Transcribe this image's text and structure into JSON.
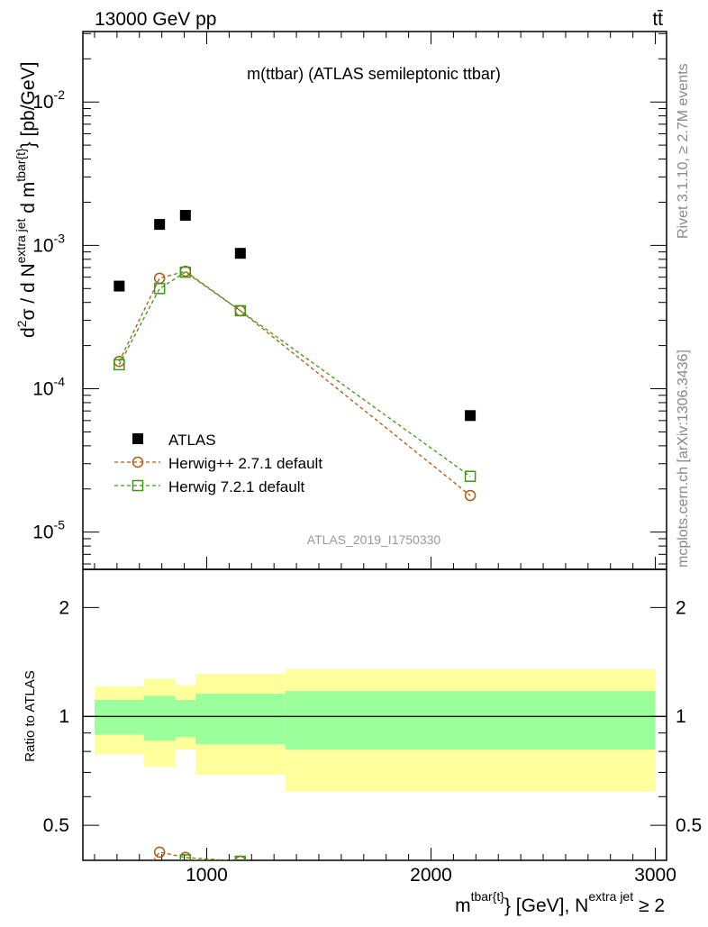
{
  "chart_data": {
    "type": "scatter",
    "header_left": "13000 GeV pp",
    "header_right": "tt̄",
    "title": "m(ttbar) (ATLAS semileptonic ttbar)",
    "analysis_id": "ATLAS_2019_I1750330",
    "side_label_top": "Rivet 3.1.10, ≥ 2.7M events",
    "side_label_bottom": "mcplots.cern.ch [arXiv:1306.3436]",
    "ylabel": "d²σ / d N^extra jet d m^tbar{t} [pb/GeV]",
    "ylabel_parts": {
      "a": "d",
      "b": "2",
      "c": "σ / d N",
      "d": "extra jet",
      "e": " d m",
      "f": "tbar{t}",
      "g": "} [pb/GeV]"
    },
    "xlabel_parts": {
      "a": "m",
      "b": "tbar{t}",
      "c": "} [GeV], N",
      "d": "extra jet",
      "e": " ≥ 2"
    },
    "ratio_ylabel": "Ratio to ATLAS",
    "yscale": "log",
    "ylim": [
      5.5e-06,
      0.031
    ],
    "xlim": [
      448,
      3050
    ],
    "ratio_ylim": [
      0.4,
      2.55
    ],
    "y_ticks": [
      {
        "v": 0.01,
        "m": "10",
        "e": "-2"
      },
      {
        "v": 0.001,
        "m": "10",
        "e": "-3"
      },
      {
        "v": 0.0001,
        "m": "10",
        "e": "-4"
      },
      {
        "v": 1e-05,
        "m": "10",
        "e": "-5"
      }
    ],
    "x_ticks": [
      1000,
      2000,
      3000
    ],
    "ratio_ticks": [
      0.5,
      1,
      2
    ],
    "bin_edges": [
      500,
      720,
      860,
      950,
      1350,
      3000
    ],
    "x": [
      610,
      790,
      905,
      1150,
      2175
    ],
    "series": [
      {
        "name": "ATLAS",
        "marker": "square-filled",
        "color": "#000000",
        "values": [
          0.00052,
          0.0014,
          0.00162,
          0.00088,
          6.5e-05
        ]
      },
      {
        "name": "Herwig++ 2.7.1 default",
        "marker": "circle-open",
        "color": "#b05a10",
        "values": [
          0.000155,
          0.00059,
          0.00066,
          0.00035,
          1.8e-05
        ]
      },
      {
        "name": "Herwig 7.2.1 default",
        "marker": "square-open",
        "color": "#3a9a10",
        "values": [
          0.000147,
          0.0005,
          0.00065,
          0.00035,
          2.45e-05
        ]
      }
    ],
    "ratio_bands": {
      "stat": {
        "color": "#9bff9b",
        "lo": [
          0.89,
          0.856,
          0.876,
          0.837,
          0.81
        ],
        "hi": [
          1.11,
          1.14,
          1.11,
          1.155,
          1.175
        ]
      },
      "total": {
        "color": "#ffff9b",
        "lo": [
          0.785,
          0.725,
          0.81,
          0.69,
          0.62
        ],
        "hi": [
          1.21,
          1.27,
          1.22,
          1.31,
          1.35
        ]
      }
    },
    "legend_position": "lower-left"
  }
}
